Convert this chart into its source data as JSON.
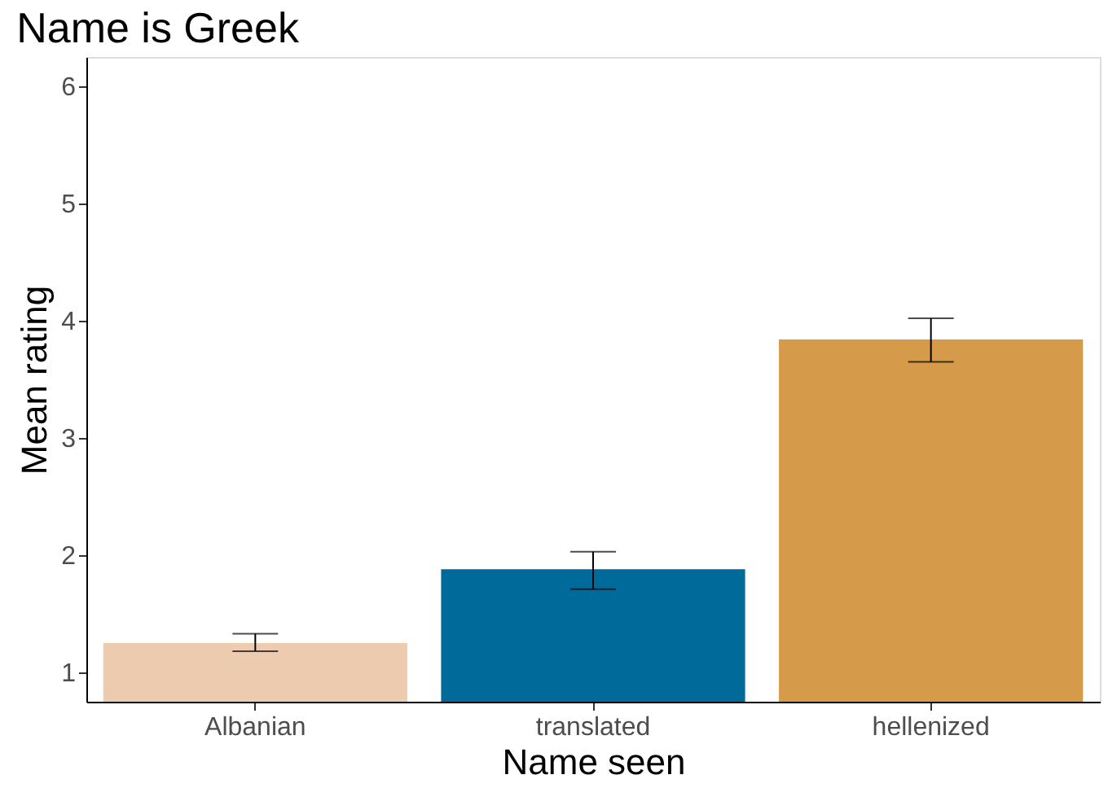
{
  "chart_data": {
    "type": "bar",
    "title": "Name is Greek",
    "xlabel": "Name seen",
    "ylabel": "Mean rating",
    "categories": [
      "Albanian",
      "translated",
      "hellenized"
    ],
    "values": [
      1.25,
      1.88,
      3.84
    ],
    "colors": [
      "#edcbae",
      "#006b9b",
      "#d59b4a"
    ],
    "errors": [
      [
        1.18,
        1.33
      ],
      [
        1.71,
        2.03
      ],
      [
        3.65,
        4.02
      ]
    ],
    "ylim": [
      0.75,
      6.25
    ],
    "yticks": [
      1,
      2,
      3,
      4,
      5,
      6
    ],
    "grid": false,
    "legend": false
  }
}
